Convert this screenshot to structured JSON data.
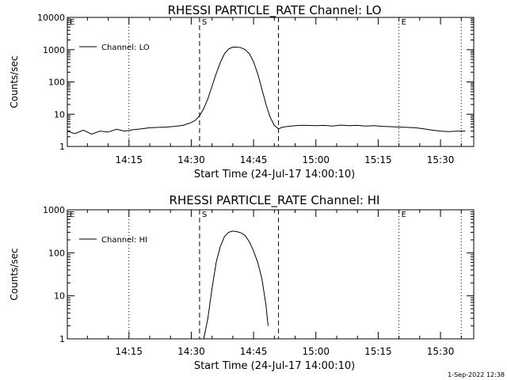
{
  "footer_stamp": "1-Sep-2022 12:38",
  "chart_data": [
    {
      "type": "line",
      "title": "RHESSI PARTICLE_RATE Channel: LO",
      "xlabel": "Start Time (24-Jul-17 14:00:10)",
      "ylabel": "Counts/sec",
      "yscale": "log",
      "ylim": [
        1,
        10000
      ],
      "ytick_values": [
        1,
        10,
        100,
        1000,
        10000
      ],
      "ytick_labels": [
        "1",
        "10",
        "100",
        "1000",
        "10000"
      ],
      "xlim": [
        "14:00:10",
        "15:38:00"
      ],
      "xtick_times": [
        "14:15",
        "14:30",
        "14:45",
        "15:00",
        "15:15",
        "15:30"
      ],
      "xtick_labels": [
        "14:15",
        "14:30",
        "14:45",
        "15:00",
        "15:15",
        "15:30"
      ],
      "legend": {
        "label": "Channel: LO",
        "placement": "top-left"
      },
      "markers": [
        {
          "label": "E",
          "time": "14:00:10",
          "style": "dotted"
        },
        {
          "label": "",
          "time": "14:15:00",
          "style": "dotted"
        },
        {
          "label": "S",
          "time": "14:32:00",
          "style": "dashed"
        },
        {
          "label": "",
          "time": "14:51:00",
          "style": "dashed"
        },
        {
          "label": "E",
          "time": "15:20:00",
          "style": "dotted"
        },
        {
          "label": "",
          "time": "15:35:00",
          "style": "dotted"
        }
      ],
      "series": [
        {
          "name": "Channel: LO",
          "x": [
            "14:00:10",
            "14:02:00",
            "14:04:00",
            "14:06:00",
            "14:08:00",
            "14:10:00",
            "14:12:00",
            "14:14:00",
            "14:16:00",
            "14:18:00",
            "14:20:00",
            "14:22:00",
            "14:24:00",
            "14:26:00",
            "14:28:00",
            "14:30:00",
            "14:31:00",
            "14:32:00",
            "14:33:00",
            "14:34:00",
            "14:35:00",
            "14:36:00",
            "14:37:00",
            "14:38:00",
            "14:39:00",
            "14:40:00",
            "14:41:00",
            "14:42:00",
            "14:43:00",
            "14:44:00",
            "14:45:00",
            "14:46:00",
            "14:47:00",
            "14:48:00",
            "14:49:00",
            "14:50:00",
            "14:51:00",
            "14:52:00",
            "14:54:00",
            "14:56:00",
            "14:58:00",
            "15:00:00",
            "15:02:00",
            "15:04:00",
            "15:06:00",
            "15:08:00",
            "15:10:00",
            "15:12:00",
            "15:14:00",
            "15:16:00",
            "15:18:00",
            "15:20:00",
            "15:22:00",
            "15:24:00",
            "15:26:00",
            "15:28:00",
            "15:30:00",
            "15:32:00",
            "15:34:00",
            "15:36:00"
          ],
          "y": [
            3.0,
            2.5,
            3.2,
            2.4,
            3.0,
            2.8,
            3.4,
            3.0,
            3.3,
            3.5,
            3.8,
            3.9,
            4.0,
            4.2,
            4.5,
            5.5,
            6.5,
            9,
            15,
            30,
            75,
            180,
            400,
            750,
            1050,
            1200,
            1200,
            1150,
            1000,
            750,
            420,
            180,
            60,
            20,
            8,
            4.5,
            3.5,
            4.0,
            4.3,
            4.5,
            4.5,
            4.4,
            4.5,
            4.3,
            4.6,
            4.4,
            4.5,
            4.3,
            4.4,
            4.2,
            4.1,
            4.0,
            3.9,
            3.8,
            3.5,
            3.2,
            3.0,
            2.9,
            3.0,
            3.0
          ]
        }
      ]
    },
    {
      "type": "line",
      "title": "RHESSI PARTICLE_RATE Channel: HI",
      "xlabel": "Start Time (24-Jul-17 14:00:10)",
      "ylabel": "Counts/sec",
      "yscale": "log",
      "ylim": [
        1,
        1000
      ],
      "ytick_values": [
        1,
        10,
        100,
        1000
      ],
      "ytick_labels": [
        "1",
        "10",
        "100",
        "1000"
      ],
      "xlim": [
        "14:00:10",
        "15:38:00"
      ],
      "xtick_times": [
        "14:15",
        "14:30",
        "14:45",
        "15:00",
        "15:15",
        "15:30"
      ],
      "xtick_labels": [
        "14:15",
        "14:30",
        "14:45",
        "15:00",
        "15:15",
        "15:30"
      ],
      "legend": {
        "label": "Channel: HI",
        "placement": "top-left"
      },
      "markers": [
        {
          "label": "E",
          "time": "14:00:10",
          "style": "dotted"
        },
        {
          "label": "",
          "time": "14:15:00",
          "style": "dotted"
        },
        {
          "label": "S",
          "time": "14:32:00",
          "style": "dashed"
        },
        {
          "label": "",
          "time": "14:51:00",
          "style": "dashed"
        },
        {
          "label": "E",
          "time": "15:20:00",
          "style": "dotted"
        },
        {
          "label": "",
          "time": "15:35:00",
          "style": "dotted"
        }
      ],
      "series": [
        {
          "name": "Channel: HI",
          "x": [
            "14:33:00",
            "14:34:00",
            "14:35:00",
            "14:36:00",
            "14:37:00",
            "14:38:00",
            "14:39:00",
            "14:40:00",
            "14:41:00",
            "14:42:00",
            "14:43:00",
            "14:44:00",
            "14:45:00",
            "14:46:00",
            "14:47:00",
            "14:48:00",
            "14:48:30"
          ],
          "y": [
            1.0,
            3.0,
            15,
            60,
            140,
            240,
            300,
            320,
            310,
            290,
            250,
            180,
            110,
            60,
            25,
            6,
            2
          ]
        }
      ]
    }
  ]
}
